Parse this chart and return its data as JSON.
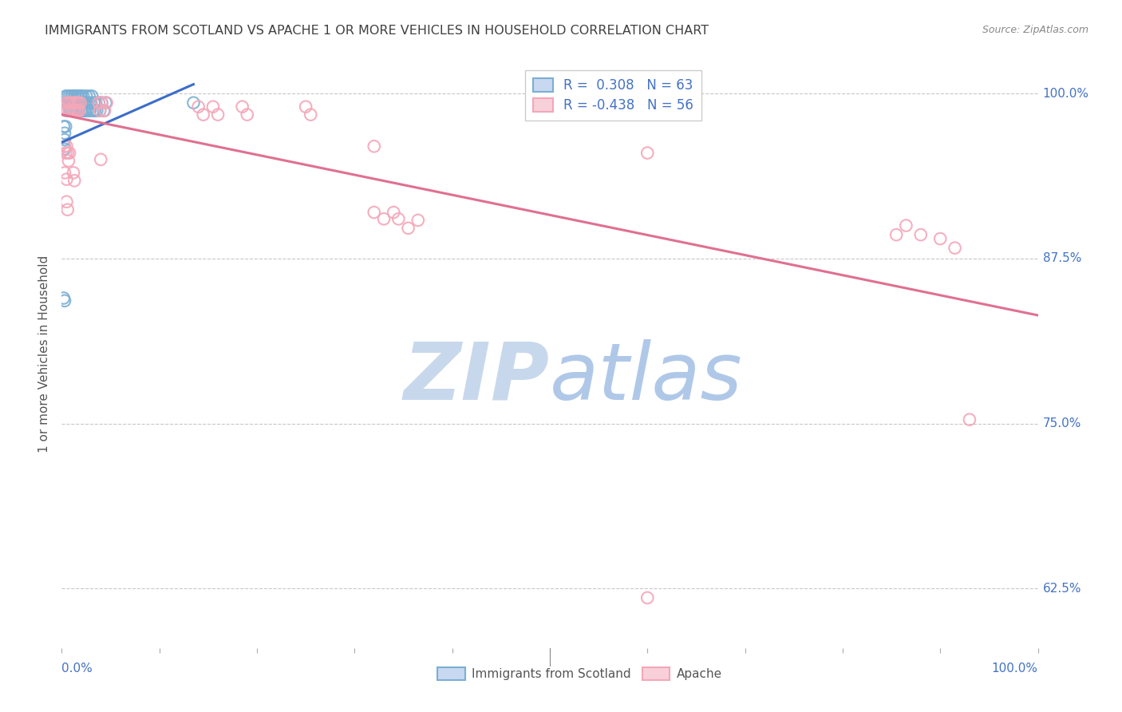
{
  "title": "IMMIGRANTS FROM SCOTLAND VS APACHE 1 OR MORE VEHICLES IN HOUSEHOLD CORRELATION CHART",
  "source": "Source: ZipAtlas.com",
  "ylabel": "1 or more Vehicles in Household",
  "xlim": [
    0.0,
    1.0
  ],
  "ylim": [
    0.58,
    1.025
  ],
  "yticks": [
    0.625,
    0.75,
    0.875,
    1.0
  ],
  "ytick_labels": [
    "62.5%",
    "75.0%",
    "87.5%",
    "100.0%"
  ],
  "xticks": [
    0.0,
    0.1,
    0.2,
    0.3,
    0.4,
    0.5,
    0.6,
    0.7,
    0.8,
    0.9,
    1.0
  ],
  "blue_color": "#7bafd4",
  "pink_color": "#f4a7b9",
  "blue_line_color": "#3c6dc8",
  "pink_line_color": "#e07090",
  "blue_scatter": [
    [
      0.004,
      0.998
    ],
    [
      0.005,
      0.993
    ],
    [
      0.005,
      0.987
    ],
    [
      0.006,
      0.998
    ],
    [
      0.007,
      0.993
    ],
    [
      0.008,
      0.998
    ],
    [
      0.008,
      0.987
    ],
    [
      0.009,
      0.993
    ],
    [
      0.009,
      0.987
    ],
    [
      0.01,
      0.998
    ],
    [
      0.01,
      0.993
    ],
    [
      0.011,
      0.998
    ],
    [
      0.011,
      0.987
    ],
    [
      0.012,
      0.993
    ],
    [
      0.012,
      0.987
    ],
    [
      0.013,
      0.998
    ],
    [
      0.013,
      0.993
    ],
    [
      0.014,
      0.998
    ],
    [
      0.014,
      0.987
    ],
    [
      0.015,
      0.993
    ],
    [
      0.015,
      0.987
    ],
    [
      0.016,
      0.998
    ],
    [
      0.016,
      0.993
    ],
    [
      0.017,
      0.998
    ],
    [
      0.017,
      0.987
    ],
    [
      0.018,
      0.993
    ],
    [
      0.018,
      0.987
    ],
    [
      0.019,
      0.998
    ],
    [
      0.019,
      0.993
    ],
    [
      0.02,
      0.998
    ],
    [
      0.02,
      0.987
    ],
    [
      0.021,
      0.993
    ],
    [
      0.022,
      0.998
    ],
    [
      0.022,
      0.987
    ],
    [
      0.023,
      0.993
    ],
    [
      0.024,
      0.987
    ],
    [
      0.025,
      0.993
    ],
    [
      0.025,
      0.998
    ],
    [
      0.026,
      0.987
    ],
    [
      0.027,
      0.993
    ],
    [
      0.028,
      0.998
    ],
    [
      0.029,
      0.987
    ],
    [
      0.03,
      0.993
    ],
    [
      0.031,
      0.998
    ],
    [
      0.032,
      0.987
    ],
    [
      0.033,
      0.993
    ],
    [
      0.034,
      0.987
    ],
    [
      0.035,
      0.993
    ],
    [
      0.036,
      0.987
    ],
    [
      0.038,
      0.993
    ],
    [
      0.039,
      0.987
    ],
    [
      0.041,
      0.993
    ],
    [
      0.043,
      0.987
    ],
    [
      0.045,
      0.993
    ],
    [
      0.002,
      0.975
    ],
    [
      0.003,
      0.97
    ],
    [
      0.003,
      0.965
    ],
    [
      0.004,
      0.975
    ],
    [
      0.003,
      0.958
    ],
    [
      0.002,
      0.845
    ],
    [
      0.003,
      0.843
    ],
    [
      0.135,
      0.993
    ]
  ],
  "pink_scatter": [
    [
      0.005,
      0.993
    ],
    [
      0.006,
      0.987
    ],
    [
      0.007,
      0.993
    ],
    [
      0.008,
      0.987
    ],
    [
      0.009,
      0.993
    ],
    [
      0.01,
      0.987
    ],
    [
      0.011,
      0.993
    ],
    [
      0.012,
      0.987
    ],
    [
      0.013,
      0.993
    ],
    [
      0.014,
      0.987
    ],
    [
      0.015,
      0.993
    ],
    [
      0.016,
      0.987
    ],
    [
      0.017,
      0.993
    ],
    [
      0.018,
      0.987
    ],
    [
      0.019,
      0.993
    ],
    [
      0.038,
      0.993
    ],
    [
      0.039,
      0.987
    ],
    [
      0.041,
      0.993
    ],
    [
      0.044,
      0.987
    ],
    [
      0.046,
      0.993
    ],
    [
      0.003,
      0.96
    ],
    [
      0.004,
      0.955
    ],
    [
      0.005,
      0.96
    ],
    [
      0.006,
      0.955
    ],
    [
      0.007,
      0.949
    ],
    [
      0.008,
      0.955
    ],
    [
      0.04,
      0.95
    ],
    [
      0.14,
      0.99
    ],
    [
      0.145,
      0.984
    ],
    [
      0.155,
      0.99
    ],
    [
      0.16,
      0.984
    ],
    [
      0.185,
      0.99
    ],
    [
      0.19,
      0.984
    ],
    [
      0.25,
      0.99
    ],
    [
      0.255,
      0.984
    ],
    [
      0.32,
      0.96
    ],
    [
      0.003,
      0.94
    ],
    [
      0.005,
      0.935
    ],
    [
      0.012,
      0.94
    ],
    [
      0.013,
      0.934
    ],
    [
      0.005,
      0.918
    ],
    [
      0.006,
      0.912
    ],
    [
      0.6,
      0.955
    ],
    [
      0.32,
      0.91
    ],
    [
      0.33,
      0.905
    ],
    [
      0.34,
      0.91
    ],
    [
      0.345,
      0.905
    ],
    [
      0.355,
      0.898
    ],
    [
      0.365,
      0.904
    ],
    [
      0.855,
      0.893
    ],
    [
      0.865,
      0.9
    ],
    [
      0.88,
      0.893
    ],
    [
      0.9,
      0.89
    ],
    [
      0.915,
      0.883
    ],
    [
      0.6,
      0.618
    ],
    [
      0.93,
      0.753
    ]
  ],
  "blue_trendline": [
    [
      0.0,
      0.963
    ],
    [
      0.135,
      1.007
    ]
  ],
  "pink_trendline": [
    [
      0.0,
      0.984
    ],
    [
      1.0,
      0.832
    ]
  ],
  "background_color": "#ffffff",
  "grid_color": "#c8c8c8",
  "title_color": "#404040",
  "axis_label_color": "#555555",
  "tick_label_color": "#4472c4",
  "watermark_zip_color": "#c8d8ec",
  "watermark_atlas_color": "#b0c8e8"
}
